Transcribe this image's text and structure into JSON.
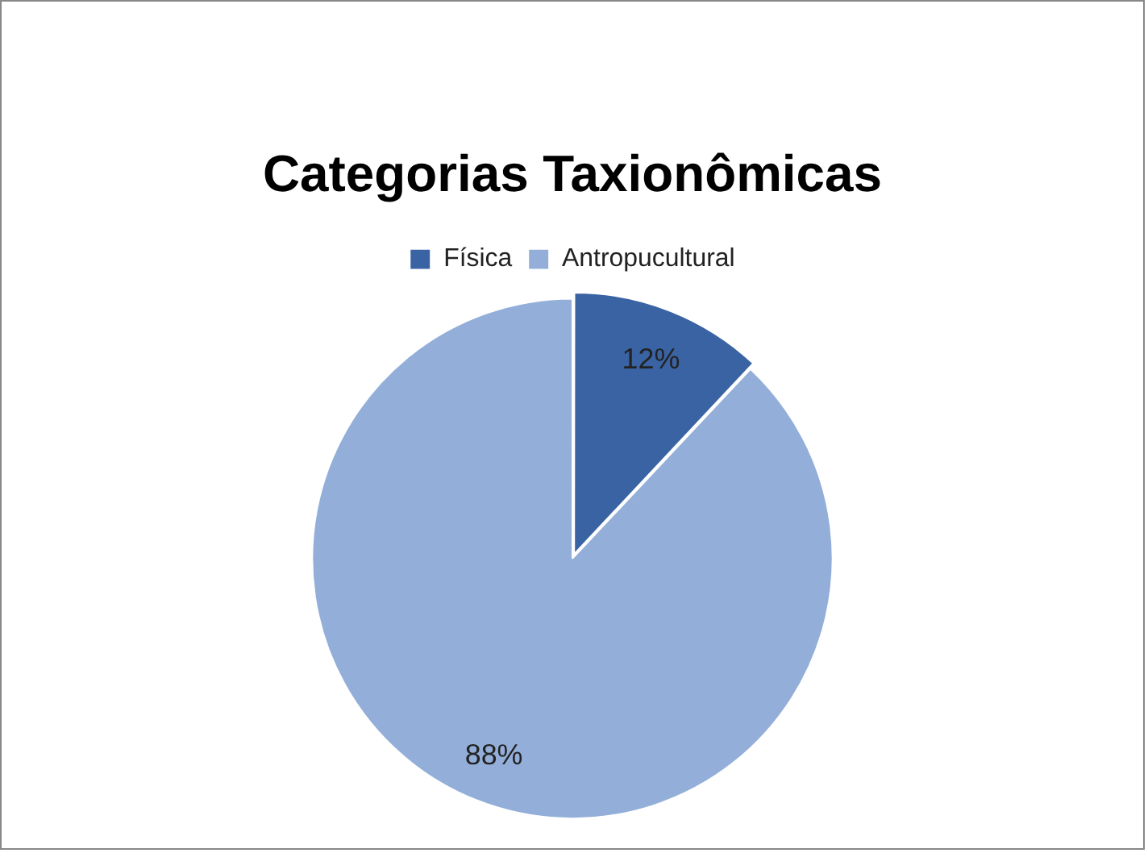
{
  "chart_data": {
    "type": "pie",
    "title": "Categorias Taxionômicas",
    "categories": [
      "Física",
      "Antropucultural"
    ],
    "values": [
      12,
      88
    ],
    "value_labels": [
      "12%",
      "88%"
    ],
    "colors": [
      "#3a63a4",
      "#93afd9"
    ],
    "legend": "top"
  }
}
